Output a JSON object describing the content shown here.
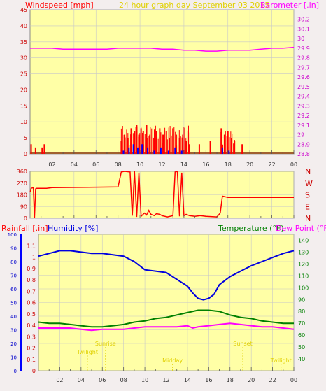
{
  "header": {
    "left_label": "Windspeed [mph]",
    "center_label": "24 hour graph day   September 03 2015",
    "right_label": "Barometer [.in]"
  },
  "bottom_header": {
    "rain_label": "Rainfall [.in]",
    "humidity_label": "Humidity [%]",
    "temperature_label": "Temperature (°F)",
    "dewpoint_label": "Dew Point (°F)"
  },
  "colors": {
    "plot_bg": "#ffffa6",
    "page_bg": "#f3eeee",
    "grid": "#c8c8c8",
    "wind": "#ff0000",
    "gust_blue": "#0000ff",
    "baro": "#ff00ff",
    "humidity": "#0000e0",
    "temperature": "#008000",
    "dewpoint": "#ff00ff",
    "rain": "#ff0000",
    "sun_text": "#e0d000"
  },
  "x_ticks": [
    "02",
    "04",
    "06",
    "08",
    "10",
    "12",
    "14",
    "16",
    "18",
    "20",
    "22",
    "00"
  ],
  "chart_data": [
    {
      "type": "line",
      "name": "wind_and_barometer",
      "x_unit": "hour",
      "xlim": [
        0,
        24
      ],
      "left_axis": {
        "ylim": [
          0,
          45
        ],
        "ticks": [
          0,
          5,
          10,
          15,
          20,
          25,
          30,
          35,
          40,
          45
        ]
      },
      "right_axis": {
        "ylim": [
          28.8,
          30.3
        ],
        "ticks": [
          "28.8",
          "28.9",
          "29",
          "29.1",
          "29.2",
          "29.3",
          "29.4",
          "29.5",
          "29.6",
          "29.7",
          "29.8",
          "29.9",
          "30",
          "30.1",
          "30.2"
        ]
      },
      "series": [
        {
          "axis": "right",
          "x": [
            0,
            1,
            2,
            3,
            4,
            5,
            6,
            7,
            8,
            9,
            10,
            11,
            12,
            13,
            14,
            15,
            16,
            17,
            18,
            19,
            20,
            21,
            22,
            23,
            24
          ],
          "values": [
            29.9,
            29.9,
            29.9,
            29.89,
            29.89,
            29.89,
            29.89,
            29.89,
            29.9,
            29.9,
            29.9,
            29.9,
            29.89,
            29.89,
            29.88,
            29.88,
            29.87,
            29.87,
            29.88,
            29.88,
            29.88,
            29.89,
            29.9,
            29.9,
            29.91
          ]
        },
        {
          "axis": "left",
          "kind": "bars",
          "x": [
            0.1,
            0.5,
            1.1,
            1.3,
            8.3,
            8.6,
            8.9,
            9.2,
            9.5,
            9.7,
            9.9,
            10.1,
            10.3,
            10.6,
            10.9,
            11.2,
            11.5,
            11.8,
            12.1,
            12.4,
            12.7,
            13,
            13.3,
            13.6,
            13.9,
            14.2,
            14.5,
            15.4,
            16.4,
            17.4,
            17.7,
            18,
            18.3,
            18.6,
            19.3
          ],
          "values": [
            3,
            2,
            2,
            3,
            4,
            6,
            5,
            8,
            7,
            9,
            6,
            8,
            7,
            9,
            6,
            5,
            7,
            8,
            6,
            7,
            5,
            8,
            6,
            5,
            6,
            4,
            3,
            3,
            4,
            8,
            6,
            7,
            5,
            4,
            3
          ]
        },
        {
          "axis": "left",
          "kind": "bars_blue",
          "x": [
            8.5,
            9,
            9.4,
            9.8,
            10.2,
            10.7,
            11.3,
            11.9,
            12.6,
            13.2,
            13.8,
            17.5,
            18.1
          ],
          "values": [
            1,
            2,
            3,
            2,
            3,
            2,
            1,
            2,
            1,
            2,
            1,
            2,
            1
          ]
        }
      ]
    },
    {
      "type": "line",
      "name": "wind_direction",
      "xlim": [
        0,
        24
      ],
      "left_axis": {
        "ylim": [
          0,
          360
        ],
        "ticks": [
          0,
          90,
          180,
          270,
          360
        ]
      },
      "right_labels": [
        "N",
        "W",
        "S",
        "E",
        "N"
      ],
      "series": [
        {
          "x": [
            0,
            0.1,
            0.3,
            0.4,
            0.5,
            0.6,
            1.5,
            2,
            8,
            8.3,
            8.6,
            9.1,
            9.3,
            9.5,
            9.7,
            9.9,
            10.1,
            10.4,
            10.6,
            10.8,
            11,
            11.3,
            11.5,
            11.8,
            12,
            12.5,
            13,
            13.2,
            13.4,
            13.6,
            13.8,
            14,
            14.2,
            14.5,
            15,
            15.5,
            16,
            17,
            17.3,
            17.5,
            18,
            20,
            22,
            24
          ],
          "values": [
            200,
            230,
            235,
            0,
            225,
            230,
            230,
            235,
            240,
            355,
            360,
            355,
            20,
            360,
            10,
            350,
            15,
            40,
            25,
            60,
            30,
            20,
            35,
            30,
            20,
            10,
            20,
            355,
            360,
            15,
            350,
            20,
            30,
            20,
            15,
            20,
            15,
            10,
            40,
            170,
            160,
            160,
            160,
            160
          ]
        }
      ]
    },
    {
      "type": "line",
      "name": "humidity_temperature_dewpoint",
      "xlim": [
        0,
        24
      ],
      "rain_axis": {
        "ylim": [
          0,
          1.2
        ],
        "ticks": [
          "0",
          "0.1",
          "0.2",
          "0.3",
          "0.4",
          "0.5",
          "0.6",
          "0.7",
          "0.8",
          "0.9",
          "1",
          "1.1"
        ]
      },
      "humidity_axis": {
        "ylim": [
          0,
          100
        ],
        "ticks": [
          0,
          10,
          20,
          30,
          40,
          50,
          60,
          70,
          80,
          90,
          100
        ]
      },
      "temp_axis": {
        "ylim": [
          30,
          145
        ],
        "ticks": [
          40,
          50,
          60,
          70,
          80,
          90,
          100,
          110,
          120,
          130,
          140
        ]
      },
      "series": [
        {
          "name": "Humidity [%]",
          "x": [
            0,
            1,
            2,
            3,
            4,
            5,
            6,
            7,
            8,
            9,
            10,
            11,
            12,
            13,
            14,
            14.5,
            15,
            15.5,
            16,
            16.5,
            17,
            18,
            19,
            20,
            21,
            22,
            23,
            24
          ],
          "values": [
            84,
            86,
            88,
            88,
            87,
            86,
            86,
            85,
            84,
            80,
            74,
            73,
            72,
            67,
            62,
            57,
            53,
            52,
            53,
            56,
            63,
            69,
            73,
            77,
            80,
            83,
            86,
            88
          ]
        },
        {
          "name": "Temperature (°F)",
          "x": [
            0,
            1,
            2,
            3,
            4,
            5,
            6,
            7,
            8,
            9,
            10,
            11,
            12,
            13,
            14,
            15,
            16,
            17,
            18,
            19,
            20,
            21,
            22,
            23,
            24
          ],
          "values": [
            71,
            70,
            70,
            69,
            68,
            67,
            67,
            68,
            69,
            71,
            72,
            74,
            75,
            77,
            79,
            81,
            81,
            80,
            77,
            75,
            74,
            72,
            71,
            70,
            70
          ]
        },
        {
          "name": "Dew Point (°F)",
          "x": [
            0,
            1,
            2,
            3,
            4,
            5,
            6,
            7,
            8,
            9,
            10,
            11,
            12,
            13,
            14,
            14.5,
            15,
            16,
            17,
            18,
            19,
            20,
            21,
            22,
            23,
            24
          ],
          "values": [
            66,
            66,
            66,
            66,
            65,
            64,
            65,
            65,
            65,
            66,
            67,
            67,
            67,
            67,
            68,
            66,
            67,
            68,
            69,
            70,
            69,
            68,
            67,
            67,
            66,
            65
          ]
        }
      ],
      "annotations": [
        {
          "label": "Twilight",
          "x": 4.6,
          "level": 1
        },
        {
          "label": "Sunrise",
          "x": 6.3,
          "level": 2
        },
        {
          "label": "Midday",
          "x": 12.6,
          "level": 0
        },
        {
          "label": "Sunset",
          "x": 19.2,
          "level": 2
        },
        {
          "label": "Twilight",
          "x": 22.8,
          "level": 0
        }
      ]
    }
  ]
}
